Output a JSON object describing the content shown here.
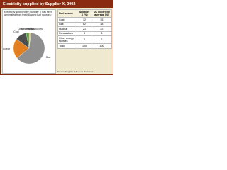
{
  "title": "Electricity supplied by Supplier X, 2002",
  "chart_data": {
    "type": "pie",
    "subtitle": "Electricity supplied by Supplier X has been generated from the following fuel sources:",
    "categories": [
      "Other energy sources",
      "Gas",
      "Nuclear",
      "Coal",
      "Renewables"
    ],
    "values": [
      2,
      62,
      21,
      12,
      3
    ],
    "colors": [
      "#d9c26e",
      "#8f8f8f",
      "#e2801f",
      "#4e4e4e",
      "#4f9a3c"
    ]
  },
  "table": {
    "header": [
      "Fuel source",
      "Supplier X (%)",
      "UK electricity average (%)"
    ],
    "rows": [
      [
        "Coal",
        "12",
        "35"
      ],
      [
        "Gas",
        "62",
        "38"
      ],
      [
        "Nuclear",
        "21",
        "22"
      ],
      [
        "Renewables",
        "3",
        "3"
      ],
      [
        "Other energy sources",
        "2",
        "2"
      ],
      [
        "Total",
        "100",
        "100"
      ]
    ],
    "note": "Source: Supplier X fuel mix disclosure"
  }
}
